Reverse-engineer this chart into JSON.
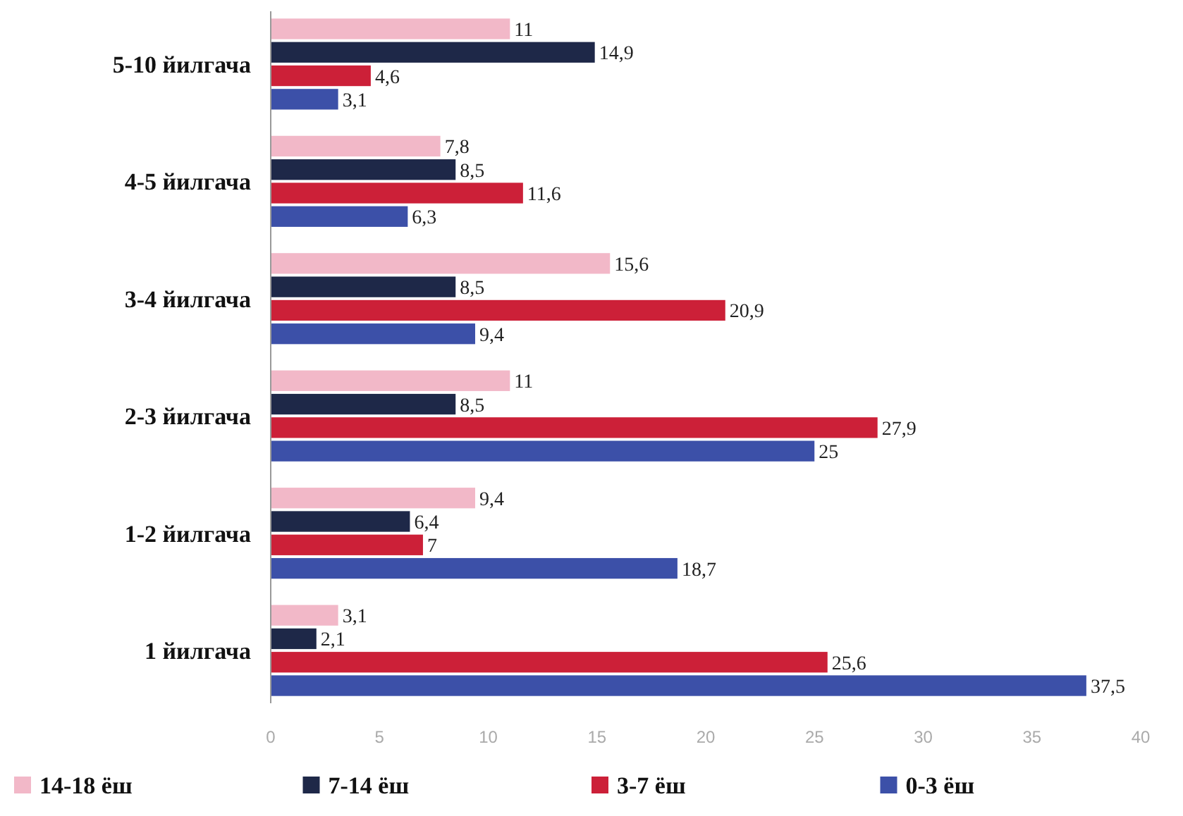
{
  "chart_data": {
    "type": "bar",
    "orientation": "horizontal",
    "categories": [
      "5-10 йилгача",
      "4-5 йилгача",
      "3-4 йилгача",
      "2-3 йилгача",
      "1-2 йилгача",
      "1 йилгача"
    ],
    "series": [
      {
        "name": "14-18 ёш",
        "color": "#f2b8c8",
        "values": [
          11,
          7.8,
          15.6,
          11,
          9.4,
          3.1
        ],
        "value_labels": [
          "11",
          "7,8",
          "15,6",
          "11",
          "9,4",
          "3,1"
        ]
      },
      {
        "name": "7-14 ёш",
        "color": "#1e2848",
        "values": [
          14.9,
          8.5,
          8.5,
          8.5,
          6.4,
          2.1
        ],
        "value_labels": [
          "14,9",
          "8,5",
          "8,5",
          "8,5",
          "6,4",
          "2,1"
        ]
      },
      {
        "name": "3-7 ёш",
        "color": "#cc2038",
        "values": [
          4.6,
          11.6,
          20.9,
          27.9,
          7,
          25.6
        ],
        "value_labels": [
          "4,6",
          "11,6",
          "20,9",
          "27,9",
          "7",
          "25,6"
        ]
      },
      {
        "name": "0-3 ёш",
        "color": "#3c50a8",
        "values": [
          3.1,
          6.3,
          9.4,
          25,
          18.7,
          37.5
        ],
        "value_labels": [
          "3,1",
          "6,3",
          "9,4",
          "25",
          "18,7",
          "37,5"
        ]
      }
    ],
    "xlim": [
      0,
      40
    ],
    "xticks": [
      0,
      5,
      10,
      15,
      20,
      25,
      30,
      35,
      40
    ],
    "legend": "bottom",
    "grid": false
  }
}
